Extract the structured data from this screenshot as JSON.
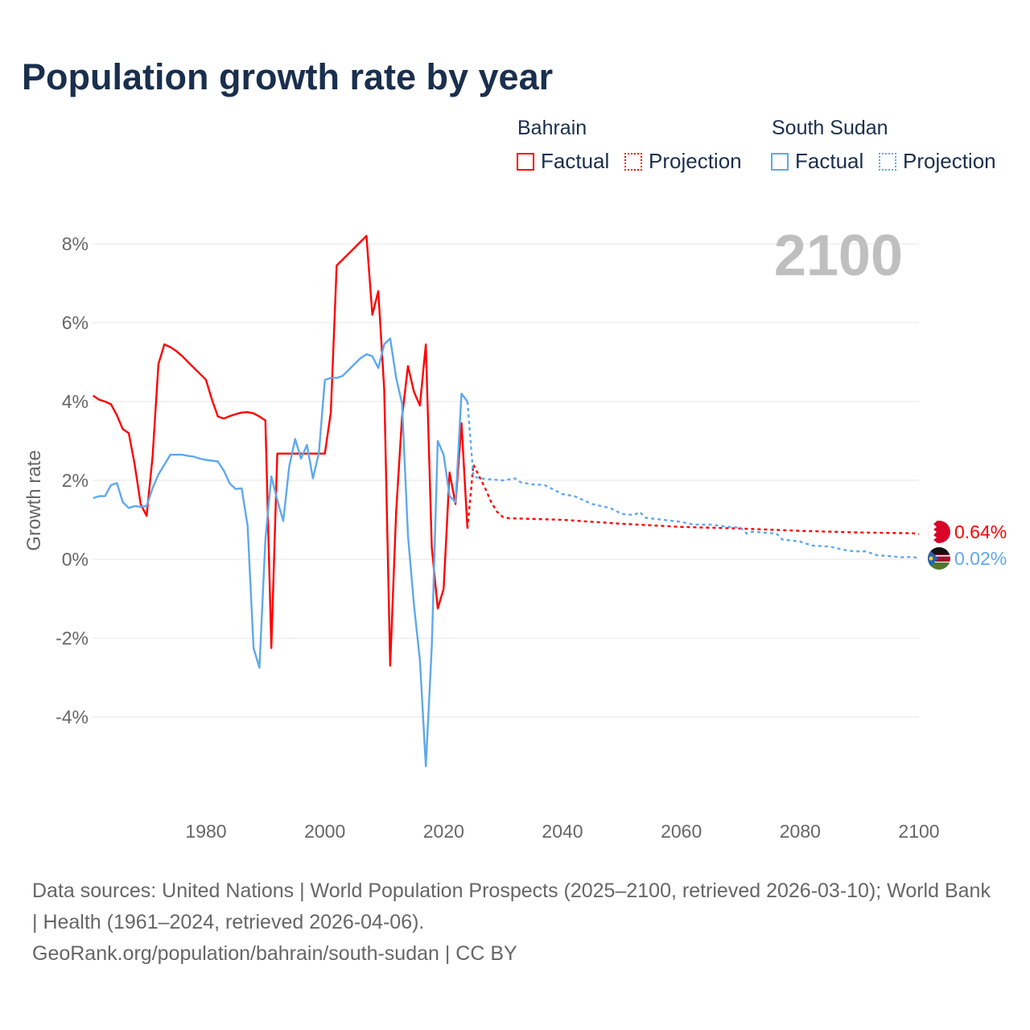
{
  "title": "Population growth rate by year",
  "legend": {
    "groups": [
      {
        "country": "Bahrain",
        "factual": "Factual",
        "projection": "Projection",
        "color": "#ff0000"
      },
      {
        "country": "South Sudan",
        "factual": "Factual",
        "projection": "Projection",
        "color": "#5fa8ee"
      }
    ]
  },
  "year_label": "2100",
  "end_labels": {
    "bahrain": "0.64%",
    "south_sudan": "0.02%"
  },
  "footer": {
    "line1": "Data sources: United Nations | World Population Prospects (2025–2100, retrieved 2026-03-10); World Bank | Health (1961–2024, retrieved 2026-04-06).",
    "line2": "GeoRank.org/population/bahrain/south-sudan | CC BY"
  },
  "chart_data": {
    "type": "line",
    "title": "Population growth rate by year",
    "xlabel": "",
    "ylabel": "Growth rate",
    "xlim": [
      1961,
      2100
    ],
    "ylim": [
      -6,
      9
    ],
    "xticks": [
      "1980",
      "2000",
      "2020",
      "2040",
      "2060",
      "2080",
      "2100"
    ],
    "yticks": [
      "8%",
      "6%",
      "4%",
      "2%",
      "0%",
      "-2%",
      "-4%"
    ],
    "grid": true,
    "series": [
      {
        "name": "Bahrain Factual",
        "color": "#ff0000",
        "dashed": false,
        "start_year": 1961,
        "values": [
          4.15,
          4.05,
          4.0,
          3.93,
          3.65,
          3.3,
          3.2,
          2.4,
          1.4,
          1.1,
          2.6,
          4.95,
          5.45,
          5.38,
          5.28,
          5.15,
          5.0,
          4.85,
          4.7,
          4.55,
          4.05,
          3.62,
          3.57,
          3.63,
          3.68,
          3.72,
          3.73,
          3.7,
          3.62,
          3.52,
          -2.25,
          2.68,
          2.68,
          2.68,
          2.68,
          2.68,
          2.68,
          2.68,
          2.68,
          2.68,
          3.72,
          7.45,
          7.6,
          7.75,
          7.9,
          8.05,
          8.2,
          6.2,
          6.8,
          4.3,
          -2.7,
          1.2,
          3.6,
          4.9,
          4.25,
          3.9,
          5.45,
          0.3,
          -1.25,
          -0.75,
          2.2,
          1.4,
          3.45,
          0.78
        ]
      },
      {
        "name": "Bahrain Projection",
        "color": "#ff0000",
        "dashed": true,
        "points": [
          [
            2024,
            0.78
          ],
          [
            2025,
            2.4
          ],
          [
            2026,
            2.1
          ],
          [
            2027,
            1.8
          ],
          [
            2028,
            1.45
          ],
          [
            2029,
            1.2
          ],
          [
            2030,
            1.07
          ],
          [
            2031,
            1.04
          ],
          [
            2040,
            1.0
          ],
          [
            2050,
            0.9
          ],
          [
            2060,
            0.82
          ],
          [
            2070,
            0.78
          ],
          [
            2080,
            0.72
          ],
          [
            2090,
            0.68
          ],
          [
            2099,
            0.66
          ],
          [
            2100,
            0.64
          ]
        ]
      },
      {
        "name": "South Sudan Factual",
        "color": "#5fa8ee",
        "dashed": false,
        "start_year": 1961,
        "values": [
          1.55,
          1.6,
          1.6,
          1.88,
          1.93,
          1.45,
          1.3,
          1.35,
          1.33,
          1.35,
          1.8,
          2.15,
          2.4,
          2.65,
          2.65,
          2.65,
          2.62,
          2.6,
          2.55,
          2.52,
          2.5,
          2.48,
          2.25,
          1.92,
          1.78,
          1.8,
          0.85,
          -2.25,
          -2.75,
          0.5,
          2.1,
          1.5,
          0.97,
          2.35,
          3.05,
          2.55,
          2.9,
          2.05,
          2.7,
          4.55,
          4.6,
          4.6,
          4.65,
          4.8,
          4.95,
          5.1,
          5.2,
          5.15,
          4.85,
          5.45,
          5.6,
          4.6,
          3.95,
          0.6,
          -1.15,
          -2.55,
          -5.25,
          -2.2,
          3.0,
          2.65,
          1.6,
          1.45,
          4.2,
          4.0
        ]
      },
      {
        "name": "South Sudan Projection",
        "color": "#5fa8ee",
        "dashed": true,
        "points": [
          [
            2024,
            4.0
          ],
          [
            2025,
            2.1
          ],
          [
            2026,
            2.05
          ],
          [
            2030,
            2.0
          ],
          [
            2032,
            2.05
          ],
          [
            2033,
            1.95
          ],
          [
            2035,
            1.9
          ],
          [
            2037,
            1.88
          ],
          [
            2040,
            1.65
          ],
          [
            2042,
            1.6
          ],
          [
            2045,
            1.4
          ],
          [
            2048,
            1.3
          ],
          [
            2050,
            1.15
          ],
          [
            2052,
            1.12
          ],
          [
            2053,
            1.2
          ],
          [
            2054,
            1.05
          ],
          [
            2057,
            1.0
          ],
          [
            2060,
            0.95
          ],
          [
            2062,
            0.88
          ],
          [
            2065,
            0.88
          ],
          [
            2068,
            0.82
          ],
          [
            2070,
            0.8
          ],
          [
            2071,
            0.65
          ],
          [
            2072,
            0.7
          ],
          [
            2076,
            0.65
          ],
          [
            2077,
            0.5
          ],
          [
            2080,
            0.45
          ],
          [
            2082,
            0.35
          ],
          [
            2085,
            0.32
          ],
          [
            2087,
            0.25
          ],
          [
            2089,
            0.2
          ],
          [
            2091,
            0.2
          ],
          [
            2093,
            0.1
          ],
          [
            2095,
            0.08
          ],
          [
            2097,
            0.05
          ],
          [
            2099,
            0.06
          ],
          [
            2100,
            0.02
          ]
        ]
      }
    ]
  }
}
